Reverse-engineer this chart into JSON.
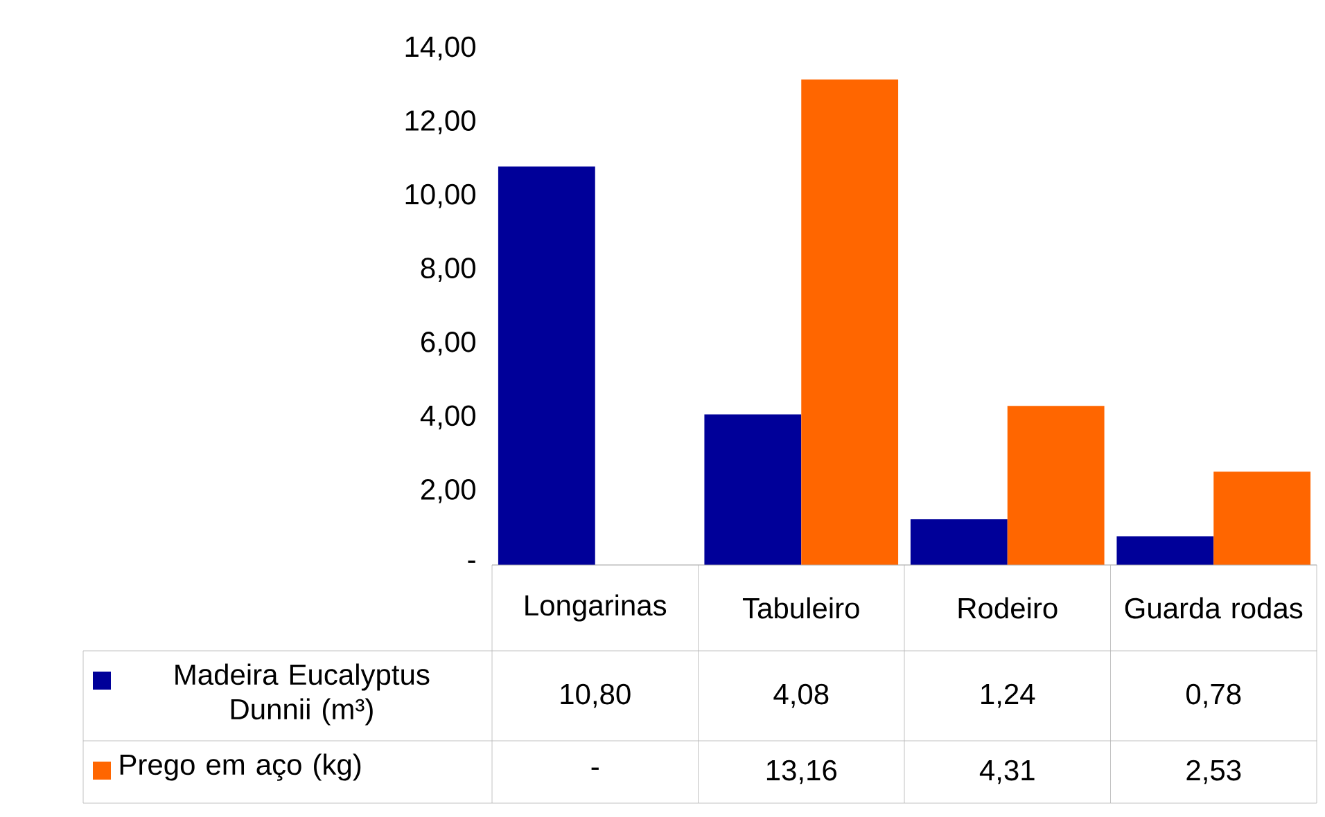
{
  "chart_data": {
    "type": "bar",
    "categories": [
      "Longarinas",
      "Tabuleiro",
      "Rodeiro",
      "Guarda rodas"
    ],
    "series": [
      {
        "name": "Madeira Eucalyptus Dunnii (m³)",
        "color": "#000099",
        "values": [
          10.8,
          4.08,
          1.24,
          0.78
        ],
        "value_labels": [
          "10,80",
          "4,08",
          "1,24",
          "0,78"
        ]
      },
      {
        "name": "Prego em aço (kg)",
        "color": "#ff6600",
        "values": [
          null,
          13.16,
          4.31,
          2.53
        ],
        "value_labels": [
          "-",
          "13,16",
          "4,31",
          "2,53"
        ]
      }
    ],
    "ylim": [
      0,
      14
    ],
    "yticks": [
      {
        "value": 0,
        "label": "-"
      },
      {
        "value": 2,
        "label": "2,00"
      },
      {
        "value": 4,
        "label": "4,00"
      },
      {
        "value": 6,
        "label": "6,00"
      },
      {
        "value": 8,
        "label": "8,00"
      },
      {
        "value": 10,
        "label": "10,00"
      },
      {
        "value": 12,
        "label": "12,00"
      },
      {
        "value": 14,
        "label": "14,00"
      }
    ],
    "legend": "bottom"
  }
}
